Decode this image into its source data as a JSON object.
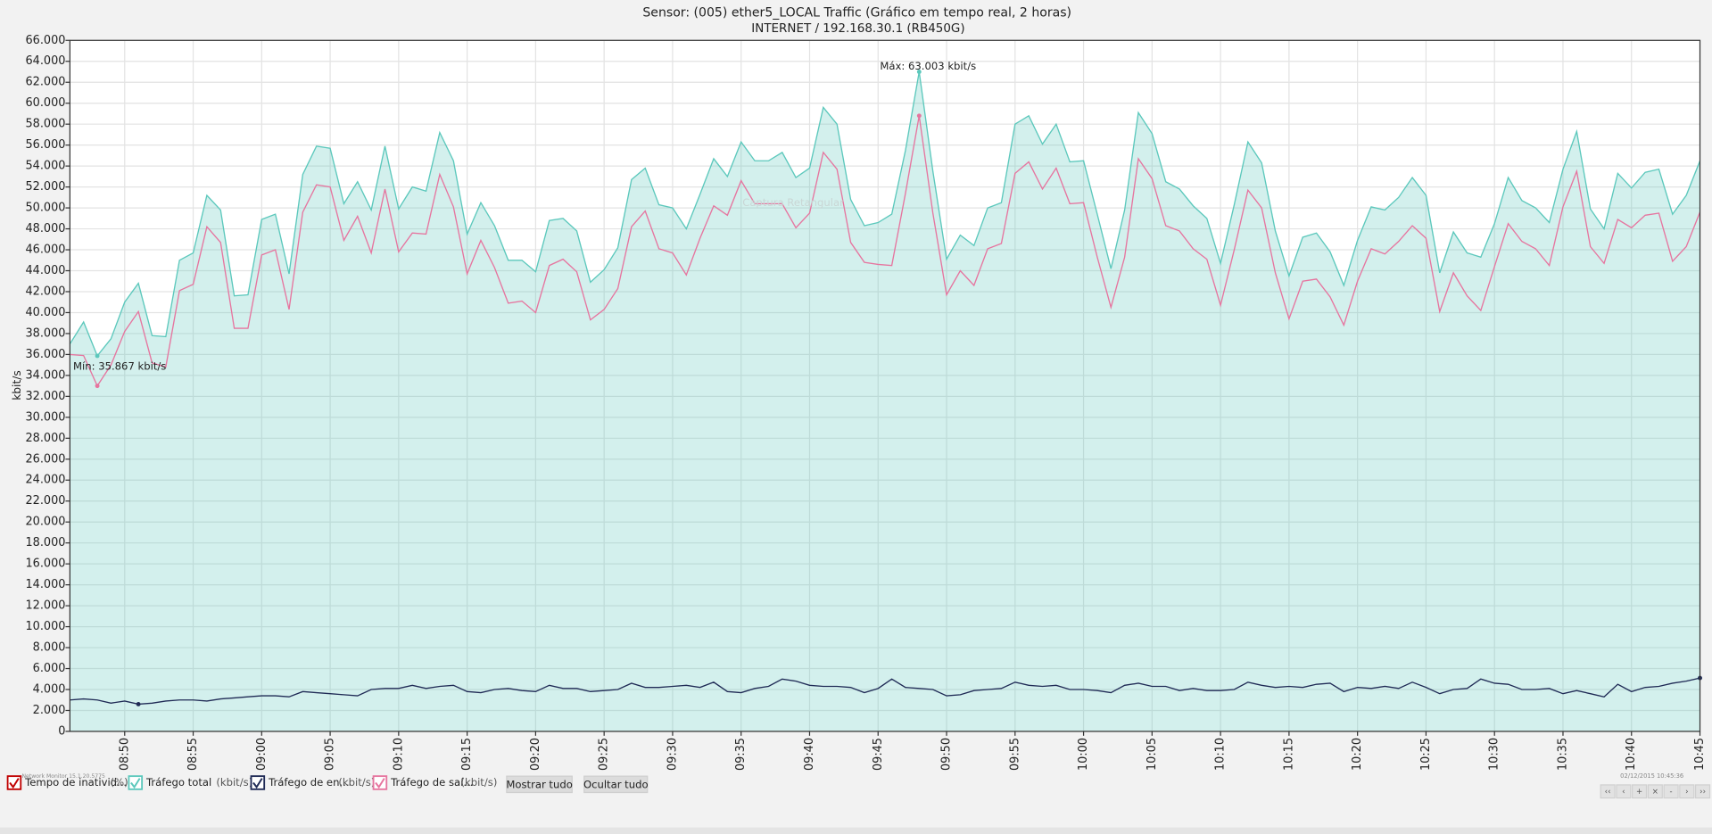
{
  "chart_data": {
    "type": "line",
    "title": "Sensor: (005) ether5_LOCAL Traffic (Gráfico em tempo real, 2 horas)",
    "subtitle": "INTERNET / 192.168.30.1 (RB450G)",
    "y_label": "kbit/s",
    "grid": true,
    "x": [
      "08:46",
      "08:47",
      "08:48",
      "08:49",
      "08:50",
      "08:51",
      "08:52",
      "08:53",
      "08:54",
      "08:55",
      "08:56",
      "08:57",
      "08:58",
      "08:59",
      "09:00",
      "09:01",
      "09:02",
      "09:03",
      "09:04",
      "09:05",
      "09:06",
      "09:07",
      "09:08",
      "09:09",
      "09:10",
      "09:11",
      "09:12",
      "09:13",
      "09:14",
      "09:15",
      "09:16",
      "09:17",
      "09:18",
      "09:19",
      "09:20",
      "09:21",
      "09:22",
      "09:23",
      "09:24",
      "09:25",
      "09:26",
      "09:27",
      "09:28",
      "09:29",
      "09:30",
      "09:31",
      "09:32",
      "09:33",
      "09:34",
      "09:35",
      "09:36",
      "09:37",
      "09:38",
      "09:39",
      "09:40",
      "09:41",
      "09:42",
      "09:43",
      "09:44",
      "09:45",
      "09:46",
      "09:47",
      "09:48",
      "09:49",
      "09:50",
      "09:51",
      "09:52",
      "09:53",
      "09:54",
      "09:55",
      "09:56",
      "09:57",
      "09:58",
      "09:59",
      "10:00",
      "10:01",
      "10:02",
      "10:03",
      "10:04",
      "10:05",
      "10:06",
      "10:07",
      "10:08",
      "10:09",
      "10:10",
      "10:11",
      "10:12",
      "10:13",
      "10:14",
      "10:15",
      "10:16",
      "10:17",
      "10:18",
      "10:19",
      "10:20",
      "10:21",
      "10:22",
      "10:23",
      "10:24",
      "10:25",
      "10:26",
      "10:27",
      "10:28",
      "10:29",
      "10:30",
      "10:31",
      "10:32",
      "10:33",
      "10:34",
      "10:35",
      "10:36",
      "10:37",
      "10:38",
      "10:39",
      "10:40",
      "10:41",
      "10:42",
      "10:43",
      "10:44",
      "10:45"
    ],
    "xlim": [
      "08:46",
      "10:45"
    ],
    "xticks": [
      "08:50",
      "08:55",
      "09:00",
      "09:05",
      "09:10",
      "09:15",
      "09:20",
      "09:25",
      "09:30",
      "09:35",
      "09:40",
      "09:45",
      "09:50",
      "09:55",
      "10:00",
      "10:05",
      "10:10",
      "10:15",
      "10:20",
      "10:25",
      "10:30",
      "10:35",
      "10:40",
      "10:45"
    ],
    "ylim": [
      0,
      66000
    ],
    "yticks": [
      0,
      {
        "value": 2000,
        "label": "2.000"
      },
      {
        "value": 4000,
        "label": "4.000"
      },
      {
        "value": 6000,
        "label": "6.000"
      },
      {
        "value": 8000,
        "label": "8.000"
      },
      {
        "value": 10000,
        "label": "10.000"
      },
      {
        "value": 12000,
        "label": "12.000"
      },
      {
        "value": 14000,
        "label": "14.000"
      },
      {
        "value": 16000,
        "label": "16.000"
      },
      {
        "value": 18000,
        "label": "18.000"
      },
      {
        "value": 20000,
        "label": "20.000"
      },
      {
        "value": 22000,
        "label": "22.000"
      },
      {
        "value": 24000,
        "label": "24.000"
      },
      {
        "value": 26000,
        "label": "26.000"
      },
      {
        "value": 28000,
        "label": "28.000"
      },
      {
        "value": 30000,
        "label": "30.000"
      },
      {
        "value": 32000,
        "label": "32.000"
      },
      {
        "value": 34000,
        "label": "34.000"
      },
      {
        "value": 36000,
        "label": "36.000"
      },
      {
        "value": 38000,
        "label": "38.000"
      },
      {
        "value": 40000,
        "label": "40.000"
      },
      {
        "value": 42000,
        "label": "42.000"
      },
      {
        "value": 44000,
        "label": "44.000"
      },
      {
        "value": 46000,
        "label": "46.000"
      },
      {
        "value": 48000,
        "label": "48.000"
      },
      {
        "value": 50000,
        "label": "50.000"
      },
      {
        "value": 52000,
        "label": "52.000"
      },
      {
        "value": 54000,
        "label": "54.000"
      },
      {
        "value": 56000,
        "label": "56.000"
      },
      {
        "value": 58000,
        "label": "58.000"
      },
      {
        "value": 60000,
        "label": "60.000"
      },
      {
        "value": 62000,
        "label": "62.000"
      },
      {
        "value": 64000,
        "label": "64.000"
      },
      {
        "value": 66000,
        "label": "66.000"
      }
    ],
    "series": [
      {
        "name": "Tráfego total",
        "unit": "(kbit/s)",
        "color": "#5cc8bc",
        "area": true,
        "values": [
          37000,
          39100,
          35867,
          37500,
          41000,
          42800,
          37800,
          37700,
          45000,
          45700,
          51200,
          49800,
          41600,
          41700,
          48900,
          49400,
          43700,
          53200,
          55900,
          55700,
          50400,
          52500,
          49800,
          55900,
          49900,
          52000,
          51600,
          57200,
          54500,
          47500,
          50500,
          48300,
          45000,
          45000,
          43900,
          48800,
          49000,
          47800,
          42900,
          44100,
          46200,
          52700,
          53800,
          50300,
          50000,
          48000,
          51300,
          54700,
          53000,
          56300,
          54500,
          54500,
          55300,
          52900,
          53800,
          59600,
          58000,
          50800,
          48300,
          48600,
          49400,
          55500,
          63003,
          53500,
          45100,
          47400,
          46400,
          50000,
          50500,
          58000,
          58800,
          56100,
          58000,
          54400,
          54500,
          49400,
          44200,
          49800,
          59100,
          57100,
          52500,
          51800,
          50200,
          49000,
          44700,
          50300,
          56300,
          54300,
          47800,
          43500,
          47200,
          47600,
          45800,
          42600,
          46900,
          50100,
          49800,
          51000,
          52900,
          51200,
          43800,
          47700,
          45700,
          45300,
          48500,
          52900,
          50700,
          50000,
          48600,
          53700,
          57300,
          49900,
          48000,
          53300,
          51900,
          53400,
          53700,
          49400,
          51200,
          54500
        ]
      },
      {
        "name": "Tráfego de en...",
        "unit": "(kbit/s)",
        "color": "#1f2a55",
        "area": false,
        "values": [
          3000,
          3100,
          3000,
          2700,
          2900,
          2600,
          2700,
          2900,
          3000,
          3000,
          2900,
          3100,
          3200,
          3300,
          3400,
          3400,
          3300,
          3800,
          3700,
          3600,
          3500,
          3400,
          4000,
          4100,
          4100,
          4400,
          4100,
          4300,
          4400,
          3800,
          3700,
          4000,
          4100,
          3900,
          3800,
          4400,
          4100,
          4100,
          3800,
          3900,
          4000,
          4600,
          4200,
          4200,
          4300,
          4400,
          4200,
          4700,
          3800,
          3700,
          4100,
          4300,
          5000,
          4800,
          4400,
          4300,
          4300,
          4200,
          3700,
          4100,
          5000,
          4200,
          4100,
          4000,
          3400,
          3500,
          3900,
          4000,
          4100,
          4700,
          4400,
          4300,
          4400,
          4000,
          4000,
          3900,
          3700,
          4400,
          4600,
          4300,
          4300,
          3900,
          4100,
          3900,
          3900,
          4000,
          4700,
          4400,
          4200,
          4300,
          4200,
          4500,
          4600,
          3800,
          4200,
          4100,
          4300,
          4100,
          4700,
          4200,
          3600,
          4000,
          4100,
          5000,
          4600,
          4500,
          4000,
          4000,
          4100,
          3600,
          3900,
          3600,
          3300,
          4500,
          3800,
          4200,
          4300,
          4600,
          4800,
          5100
        ]
      },
      {
        "name": "Tráfego de saí...",
        "unit": "(kbit/s)",
        "color": "#e6759f",
        "area": false,
        "values": [
          36000,
          35900,
          33000,
          35000,
          38200,
          40100,
          35200,
          34800,
          42100,
          42700,
          48200,
          46700,
          38500,
          38500,
          45500,
          46000,
          40300,
          49600,
          52200,
          52000,
          46900,
          49200,
          45700,
          51800,
          45800,
          47600,
          47500,
          53200,
          50100,
          43700,
          46900,
          44300,
          40900,
          41100,
          40000,
          44500,
          45100,
          43900,
          39300,
          40300,
          42300,
          48200,
          49700,
          46100,
          45700,
          43600,
          47100,
          50200,
          49300,
          52600,
          50400,
          50400,
          50400,
          48100,
          49500,
          55300,
          53700,
          46700,
          44800,
          44600,
          44500,
          51400,
          58800,
          49500,
          41700,
          44000,
          42600,
          46100,
          46600,
          53300,
          54400,
          51800,
          53800,
          50400,
          50500,
          45300,
          40500,
          45300,
          54700,
          52800,
          48300,
          47800,
          46100,
          45100,
          40700,
          46000,
          51700,
          50000,
          43800,
          39400,
          43000,
          43200,
          41500,
          38800,
          43000,
          46100,
          45600,
          46800,
          48300,
          47100,
          40100,
          43800,
          41600,
          40200,
          44400,
          48500,
          46800,
          46100,
          44500,
          50100,
          53500,
          46300,
          44700,
          48900,
          48100,
          49300,
          49500,
          44900,
          46300,
          49600
        ]
      }
    ],
    "legend_extra": {
      "name": "Tempo de inativid...",
      "unit": "(%)",
      "color": "#c00000"
    },
    "annotations": [
      "Mín: 35.867 kbit/s",
      "Máx: 63.003 kbit/s",
      "Captura Retangular"
    ]
  },
  "controls": {
    "show_all": "Mostrar tudo",
    "hide_all": "Ocultar tudo",
    "nav": [
      "‹‹",
      "‹",
      "+",
      "×",
      "-",
      "›",
      "››"
    ],
    "version": "Network Monitor 15.1.20.5775",
    "timestamp": "02/12/2015 10:45:36"
  }
}
